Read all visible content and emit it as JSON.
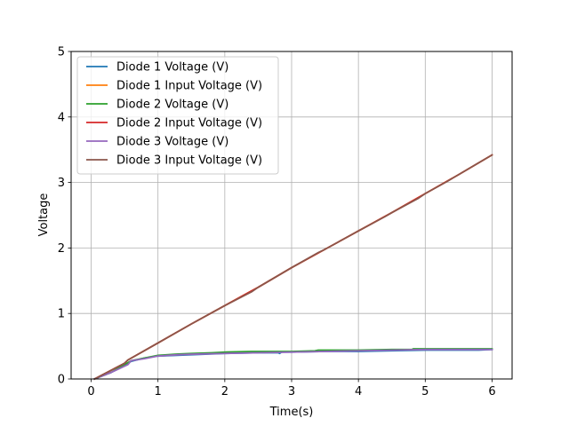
{
  "chart_data": {
    "type": "line",
    "xlabel": "Time(s)",
    "ylabel": "Voltage",
    "xlim": [
      -0.3,
      6.3
    ],
    "ylim": [
      0,
      5
    ],
    "xticks": [
      0,
      1,
      2,
      3,
      4,
      5,
      6
    ],
    "yticks": [
      0,
      1,
      2,
      3,
      4,
      5
    ],
    "grid": true,
    "legend_position": "top-left",
    "series": [
      {
        "name": "Diode 1 Voltage (V)",
        "color": "#1f77b4",
        "points": [
          [
            0.05,
            0.0
          ],
          [
            0.3,
            0.1
          ],
          [
            0.6,
            0.27
          ],
          [
            0.8,
            0.32
          ],
          [
            1.0,
            0.35
          ],
          [
            1.5,
            0.37
          ],
          [
            2.0,
            0.39
          ],
          [
            2.5,
            0.4
          ],
          [
            2.8,
            0.4
          ],
          [
            2.82,
            0.39
          ],
          [
            2.85,
            0.41
          ],
          [
            3.0,
            0.41
          ],
          [
            3.5,
            0.42
          ],
          [
            4.0,
            0.42
          ],
          [
            4.5,
            0.43
          ],
          [
            5.0,
            0.44
          ],
          [
            5.5,
            0.44
          ],
          [
            5.8,
            0.44
          ],
          [
            6.0,
            0.45
          ]
        ]
      },
      {
        "name": "Diode 1 Input Voltage (V)",
        "color": "#ff7f0e",
        "points": [
          [
            0.05,
            0.0
          ],
          [
            0.5,
            0.24
          ],
          [
            0.55,
            0.29
          ],
          [
            1.0,
            0.55
          ],
          [
            1.5,
            0.84
          ],
          [
            2.0,
            1.12
          ],
          [
            2.5,
            1.4
          ],
          [
            3.0,
            1.7
          ],
          [
            3.5,
            1.98
          ],
          [
            4.0,
            2.26
          ],
          [
            4.5,
            2.54
          ],
          [
            5.0,
            2.83
          ],
          [
            5.5,
            3.12
          ],
          [
            6.0,
            3.42
          ]
        ]
      },
      {
        "name": "Diode 2 Voltage (V)",
        "color": "#2ca02c",
        "points": [
          [
            0.05,
            0.0
          ],
          [
            0.3,
            0.1
          ],
          [
            0.6,
            0.28
          ],
          [
            0.8,
            0.32
          ],
          [
            1.0,
            0.36
          ],
          [
            1.3,
            0.38
          ],
          [
            1.5,
            0.39
          ],
          [
            1.8,
            0.4
          ],
          [
            2.0,
            0.41
          ],
          [
            2.4,
            0.42
          ],
          [
            2.8,
            0.42
          ],
          [
            3.0,
            0.42
          ],
          [
            3.35,
            0.43
          ],
          [
            3.4,
            0.44
          ],
          [
            4.0,
            0.44
          ],
          [
            4.5,
            0.45
          ],
          [
            4.8,
            0.45
          ],
          [
            4.82,
            0.46
          ],
          [
            5.5,
            0.46
          ],
          [
            6.0,
            0.46
          ]
        ]
      },
      {
        "name": "Diode 2 Input Voltage (V)",
        "color": "#d62728",
        "points": [
          [
            0.05,
            0.0
          ],
          [
            0.5,
            0.24
          ],
          [
            0.55,
            0.29
          ],
          [
            1.0,
            0.55
          ],
          [
            1.5,
            0.84
          ],
          [
            2.0,
            1.12
          ],
          [
            2.5,
            1.4
          ],
          [
            3.0,
            1.7
          ],
          [
            3.5,
            1.98
          ],
          [
            4.0,
            2.26
          ],
          [
            4.5,
            2.54
          ],
          [
            5.0,
            2.83
          ],
          [
            5.5,
            3.12
          ],
          [
            6.0,
            3.42
          ]
        ]
      },
      {
        "name": "Diode 3 Voltage (V)",
        "color": "#9467bd",
        "points": [
          [
            0.05,
            0.0
          ],
          [
            0.3,
            0.1
          ],
          [
            0.55,
            0.22
          ],
          [
            0.6,
            0.28
          ],
          [
            0.8,
            0.31
          ],
          [
            1.0,
            0.35
          ],
          [
            1.3,
            0.37
          ],
          [
            1.6,
            0.38
          ],
          [
            2.0,
            0.39
          ],
          [
            2.5,
            0.4
          ],
          [
            3.0,
            0.41
          ],
          [
            3.5,
            0.42
          ],
          [
            4.0,
            0.43
          ],
          [
            4.5,
            0.44
          ],
          [
            5.0,
            0.45
          ],
          [
            5.5,
            0.45
          ],
          [
            6.0,
            0.45
          ]
        ]
      },
      {
        "name": "Diode 3 Input Voltage (V)",
        "color": "#8c564b",
        "points": [
          [
            0.05,
            0.0
          ],
          [
            0.5,
            0.24
          ],
          [
            0.55,
            0.29
          ],
          [
            1.0,
            0.55
          ],
          [
            1.5,
            0.84
          ],
          [
            2.0,
            1.12
          ],
          [
            2.4,
            1.33
          ],
          [
            2.5,
            1.4
          ],
          [
            3.0,
            1.7
          ],
          [
            3.4,
            1.93
          ],
          [
            3.5,
            1.98
          ],
          [
            4.0,
            2.26
          ],
          [
            4.4,
            2.48
          ],
          [
            4.5,
            2.54
          ],
          [
            4.9,
            2.76
          ],
          [
            5.0,
            2.83
          ],
          [
            5.3,
            3.0
          ],
          [
            5.5,
            3.12
          ],
          [
            5.8,
            3.3
          ],
          [
            6.0,
            3.42
          ]
        ]
      }
    ]
  }
}
